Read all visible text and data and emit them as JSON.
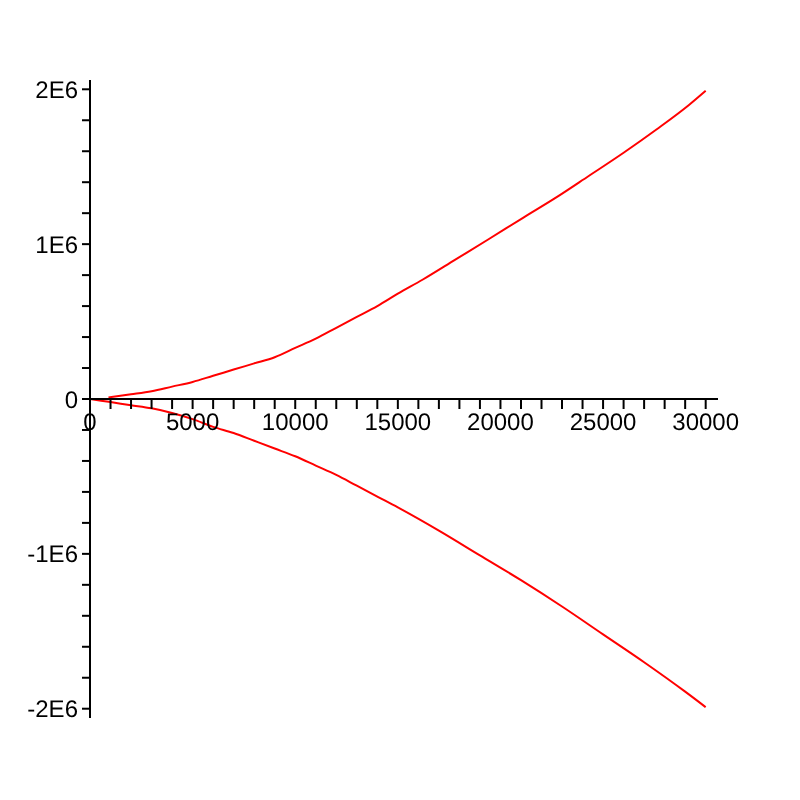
{
  "chart_data": {
    "type": "line",
    "line_style": "solid",
    "xlim": [
      0,
      30600
    ],
    "ylim": [
      -2060000,
      2060000
    ],
    "xticks": [
      0,
      {
        "value": 1000,
        "label": null
      },
      {
        "value": 2000,
        "label": null
      },
      {
        "value": 3000,
        "label": null
      },
      {
        "value": 4000,
        "label": null
      },
      5000,
      {
        "value": 6000,
        "label": null
      },
      {
        "value": 7000,
        "label": null
      },
      {
        "value": 8000,
        "label": null
      },
      {
        "value": 9000,
        "label": null
      },
      10000,
      {
        "value": 11000,
        "label": null
      },
      {
        "value": 12000,
        "label": null
      },
      {
        "value": 13000,
        "label": null
      },
      {
        "value": 14000,
        "label": null
      },
      15000,
      {
        "value": 16000,
        "label": null
      },
      {
        "value": 17000,
        "label": null
      },
      {
        "value": 18000,
        "label": null
      },
      {
        "value": 19000,
        "label": null
      },
      20000,
      {
        "value": 21000,
        "label": null
      },
      {
        "value": 22000,
        "label": null
      },
      {
        "value": 23000,
        "label": null
      },
      {
        "value": 24000,
        "label": null
      },
      25000,
      {
        "value": 26000,
        "label": null
      },
      {
        "value": 27000,
        "label": null
      },
      {
        "value": 28000,
        "label": null
      },
      {
        "value": 29000,
        "label": null
      },
      30000
    ],
    "yticks": [
      {
        "value": -2000000,
        "label": "-2E6"
      },
      {
        "value": -1800000,
        "label": null
      },
      {
        "value": -1600000,
        "label": null
      },
      {
        "value": -1400000,
        "label": null
      },
      {
        "value": -1200000,
        "label": null
      },
      {
        "value": -1000000,
        "label": "-1E6"
      },
      {
        "value": -800000,
        "label": null
      },
      {
        "value": -600000,
        "label": null
      },
      {
        "value": -400000,
        "label": null
      },
      {
        "value": -200000,
        "label": null
      },
      0,
      {
        "value": 200000,
        "label": null
      },
      {
        "value": 400000,
        "label": null
      },
      {
        "value": 600000,
        "label": null
      },
      {
        "value": 800000,
        "label": null
      },
      {
        "value": 1000000,
        "label": "1E6"
      },
      {
        "value": 1200000,
        "label": null
      },
      {
        "value": 1400000,
        "label": null
      },
      {
        "value": 1600000,
        "label": null
      },
      {
        "value": 1800000,
        "label": null
      },
      {
        "value": 2000000,
        "label": "2E6"
      }
    ],
    "series": [
      {
        "color": "#ff0000",
        "x": [
          900,
          2000,
          3000,
          4000,
          5000,
          6000,
          7000,
          8000,
          9000,
          10000,
          11000,
          12000,
          13000,
          14000,
          15000,
          16200,
          17800,
          19400,
          21100,
          22700,
          24300,
          26000,
          27600,
          29200,
          30000
        ],
        "values": [
          10000,
          30000,
          50000,
          80000,
          110000,
          150000,
          190000,
          230000,
          270000,
          330000,
          390000,
          460000,
          530000,
          600000,
          680000,
          770000,
          900000,
          1030000,
          1170000,
          1300000,
          1440000,
          1590000,
          1740000,
          1900000,
          1990000
        ]
      },
      {
        "color": "#ff0000",
        "x": [
          0,
          1000,
          2000,
          3000,
          4000,
          5000,
          6000,
          7000,
          8000,
          9000,
          10000,
          11000,
          12000,
          13000,
          14000,
          15000,
          17000,
          19000,
          21000,
          23000,
          25000,
          27000,
          29000,
          30000
        ],
        "values": [
          0,
          -20000,
          -40000,
          -60000,
          -90000,
          -130000,
          -180000,
          -220000,
          -270000,
          -320000,
          -370000,
          -430000,
          -490000,
          -560000,
          -630000,
          -700000,
          -850000,
          -1010000,
          -1170000,
          -1340000,
          -1520000,
          -1700000,
          -1890000,
          -1990000
        ]
      }
    ]
  }
}
